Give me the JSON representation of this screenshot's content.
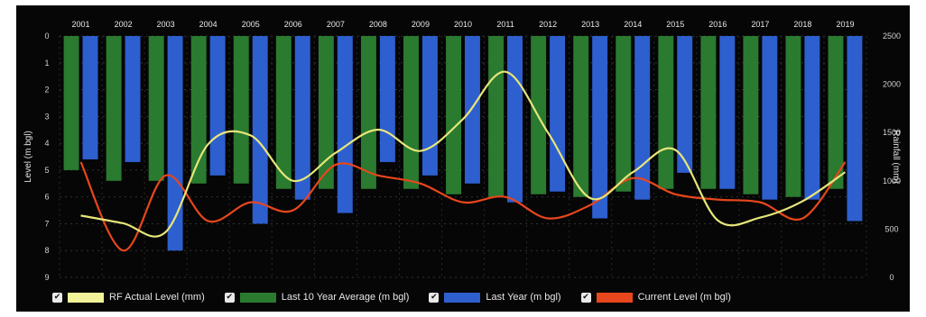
{
  "chart_data": {
    "type": "bar",
    "categories": [
      "2001",
      "2002",
      "2003",
      "2004",
      "2005",
      "2006",
      "2007",
      "2008",
      "2009",
      "2010",
      "2011",
      "2012",
      "2013",
      "2014",
      "2015",
      "2016",
      "2017",
      "2018",
      "2019"
    ],
    "ylabel_left": "Level (m bgl)",
    "ylabel_right": "Rainfall (mm)",
    "ylim_left": [
      0,
      9
    ],
    "ylim_right": [
      0,
      2500
    ],
    "left_ticks": [
      "0",
      "1",
      "2",
      "3",
      "4",
      "5",
      "6",
      "7",
      "8",
      "9"
    ],
    "right_ticks": [
      "0",
      "500",
      "1000",
      "1500",
      "2000",
      "2500"
    ],
    "grid": true,
    "legend_position": "bottom",
    "series": [
      {
        "name": "Last 10 Year Average (m bgl)",
        "kind": "bar",
        "axis": "left",
        "color": "#2a7a30",
        "values": [
          5.0,
          5.4,
          5.4,
          5.5,
          5.5,
          5.7,
          5.7,
          5.7,
          5.7,
          5.9,
          6.0,
          5.9,
          6.0,
          5.8,
          5.7,
          5.7,
          5.9,
          6.0,
          5.7
        ]
      },
      {
        "name": "Last Year (m bgl)",
        "kind": "bar",
        "axis": "left",
        "color": "#2e5fcf",
        "values": [
          4.6,
          4.7,
          8.0,
          5.2,
          7.0,
          6.1,
          6.6,
          4.7,
          5.2,
          5.5,
          6.2,
          5.8,
          6.8,
          6.1,
          5.1,
          5.7,
          6.1,
          6.1,
          6.9
        ]
      },
      {
        "name": "Current Level (m bgl)",
        "kind": "line",
        "axis": "left",
        "color": "#e8461c",
        "values": [
          4.7,
          8.0,
          5.2,
          6.9,
          6.2,
          6.5,
          4.8,
          5.2,
          5.5,
          6.2,
          6.0,
          6.8,
          6.3,
          5.3,
          5.9,
          6.1,
          6.2,
          6.8,
          4.7
        ]
      },
      {
        "name": "RF Actual Level (mm)",
        "kind": "line",
        "axis": "right",
        "color": "#e6e67a",
        "values": [
          640,
          560,
          470,
          1380,
          1470,
          1000,
          1290,
          1530,
          1310,
          1640,
          2130,
          1500,
          820,
          1090,
          1320,
          590,
          620,
          790,
          1090
        ]
      }
    ],
    "legend": [
      {
        "label": "RF Actual Level (mm)",
        "color": "#f3f39a"
      },
      {
        "label": "Last 10 Year Average (m bgl)",
        "color": "#2a7a30"
      },
      {
        "label": "Last Year (m bgl)",
        "color": "#2e5fcf"
      },
      {
        "label": "Current Level (m bgl)",
        "color": "#e8461c"
      }
    ],
    "checkbox_glyph": "✔"
  }
}
